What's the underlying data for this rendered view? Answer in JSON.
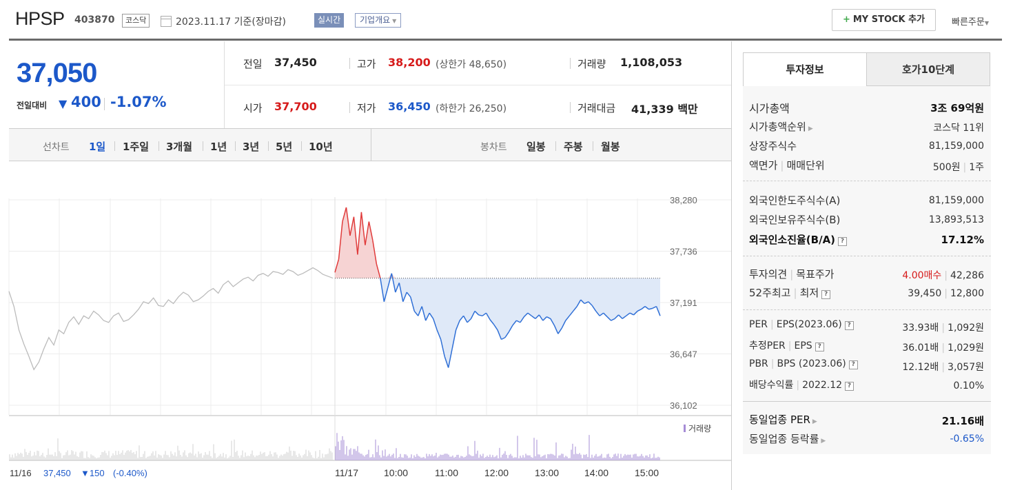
{
  "header": {
    "stock_name": "HPSP",
    "stock_code": "403870",
    "market": "코스닥",
    "date_text": "2023.11.17 기준(장마감)",
    "realtime_label": "실시간",
    "company_overview_label": "기업개요",
    "mystock_label": "MY STOCK 추가",
    "quick_order_label": "빠른주문"
  },
  "price": {
    "current": "37,050",
    "change_label": "전일대비",
    "change_value": "400",
    "change_pct": "-1.07%",
    "stats": {
      "prev_close_label": "전일",
      "prev_close": "37,450",
      "high_label": "고가",
      "high": "38,200",
      "upper_limit_label": "(상한가",
      "upper_limit": "48,650",
      "upper_close": ")",
      "volume_label": "거래량",
      "volume": "1,108,053",
      "open_label": "시가",
      "open": "37,700",
      "low_label": "저가",
      "low": "36,450",
      "lower_limit_label": "(하한가",
      "lower_limit": "26,250",
      "lower_close": ")",
      "trade_value_label": "거래대금",
      "trade_value": "41,339",
      "trade_value_unit": "백만"
    }
  },
  "period_tabs": {
    "line_label": "선차트",
    "line_items": [
      "1일",
      "1주일",
      "3개월",
      "1년",
      "3년",
      "5년",
      "10년"
    ],
    "candle_label": "봉차트",
    "candle_items": [
      "일봉",
      "주봉",
      "월봉"
    ]
  },
  "chart_data": {
    "type": "line",
    "y_ticks": [
      "38,280",
      "37,736",
      "37,191",
      "36,647",
      "36,102"
    ],
    "ylim": [
      36102,
      38280
    ],
    "prev_close": 37450,
    "x_labels": [
      "11/17",
      "10:00",
      "11:00",
      "12:00",
      "13:00",
      "14:00",
      "15:00"
    ],
    "volume_legend": "거래량",
    "prev_day_date": "11/16",
    "prev_day_close": "37,450",
    "prev_day_change": "▼150",
    "prev_day_pct": "(-0.40%)",
    "prev_day_series": [
      37310,
      37150,
      36900,
      36750,
      36620,
      36480,
      36560,
      36700,
      36820,
      36740,
      36900,
      36860,
      36980,
      37040,
      36960,
      37050,
      37020,
      37100,
      37060,
      37000,
      36980,
      37050,
      37080,
      36990,
      37010,
      37060,
      37120,
      37200,
      37180,
      37240,
      37160,
      37150,
      37220,
      37180,
      37250,
      37300,
      37270,
      37200,
      37220,
      37260,
      37310,
      37340,
      37290,
      37380,
      37420,
      37360,
      37400,
      37440,
      37460,
      37420,
      37480,
      37500,
      37470,
      37520,
      37510,
      37490,
      37540,
      37520,
      37480,
      37500,
      37530,
      37560,
      37530,
      37490,
      37470,
      37450
    ],
    "today_series": [
      37510,
      37650,
      38050,
      38200,
      37900,
      38100,
      37700,
      38150,
      37800,
      38050,
      37850,
      37600,
      37450,
      37200,
      37350,
      37500,
      37300,
      37400,
      37200,
      37300,
      37250,
      37100,
      37050,
      37150,
      37000,
      37080,
      37020,
      36900,
      36800,
      36620,
      36500,
      36700,
      36900,
      37000,
      37050,
      36980,
      37020,
      37100,
      37060,
      37050,
      37080,
      37010,
      36960,
      36900,
      36800,
      36820,
      36880,
      36950,
      37000,
      36980,
      37040,
      37080,
      37050,
      37020,
      37060,
      37000,
      37040,
      37020,
      36950,
      36860,
      36920,
      37000,
      37050,
      37100,
      37150,
      37220,
      37180,
      37200,
      37160,
      37100,
      37050,
      37080,
      37040,
      37000,
      37020,
      37060,
      37020,
      37050,
      37080,
      37060,
      37100,
      37120,
      37150,
      37120,
      37130,
      37150,
      37050
    ]
  },
  "invest_info": {
    "tab_active": "투자정보",
    "tab_inactive": "호가10단계",
    "market_cap_label": "시가총액",
    "market_cap": "3조 69억원",
    "cap_rank_label": "시가총액순위",
    "cap_rank": "코스닥 11위",
    "shares_label": "상장주식수",
    "shares": "81,159,000",
    "par_label": "액면가",
    "trade_unit_label": "매매단위",
    "par": "500원",
    "trade_unit": "1주",
    "foreign_limit_label": "외국인한도주식수(A)",
    "foreign_limit": "81,159,000",
    "foreign_hold_label": "외국인보유주식수(B)",
    "foreign_hold": "13,893,513",
    "foreign_ratio_label": "외국인소진율(B/A)",
    "foreign_ratio": "17.12%",
    "opinion_label": "투자의견",
    "target_label": "목표주가",
    "opinion": "4.00매수",
    "target": "42,286",
    "w52_label": "52주최고",
    "w52_low_label": "최저",
    "w52_high": "39,450",
    "w52_low": "12,800",
    "per_label": "PER",
    "eps_label": "EPS(2023.06)",
    "per": "33.93배",
    "eps": "1,092원",
    "est_per_label": "추정PER",
    "est_eps_label": "EPS",
    "est_per": "36.01배",
    "est_eps": "1,029원",
    "pbr_label": "PBR",
    "bps_label": "BPS (2023.06)",
    "pbr": "12.12배",
    "bps": "3,057원",
    "div_label": "배당수익률",
    "div_date": "2022.12",
    "div": "0.10%",
    "ind_per_label": "동일업종 PER",
    "ind_per": "21.16배",
    "ind_chg_label": "동일업종 등락률",
    "ind_chg": "-0.65%"
  }
}
